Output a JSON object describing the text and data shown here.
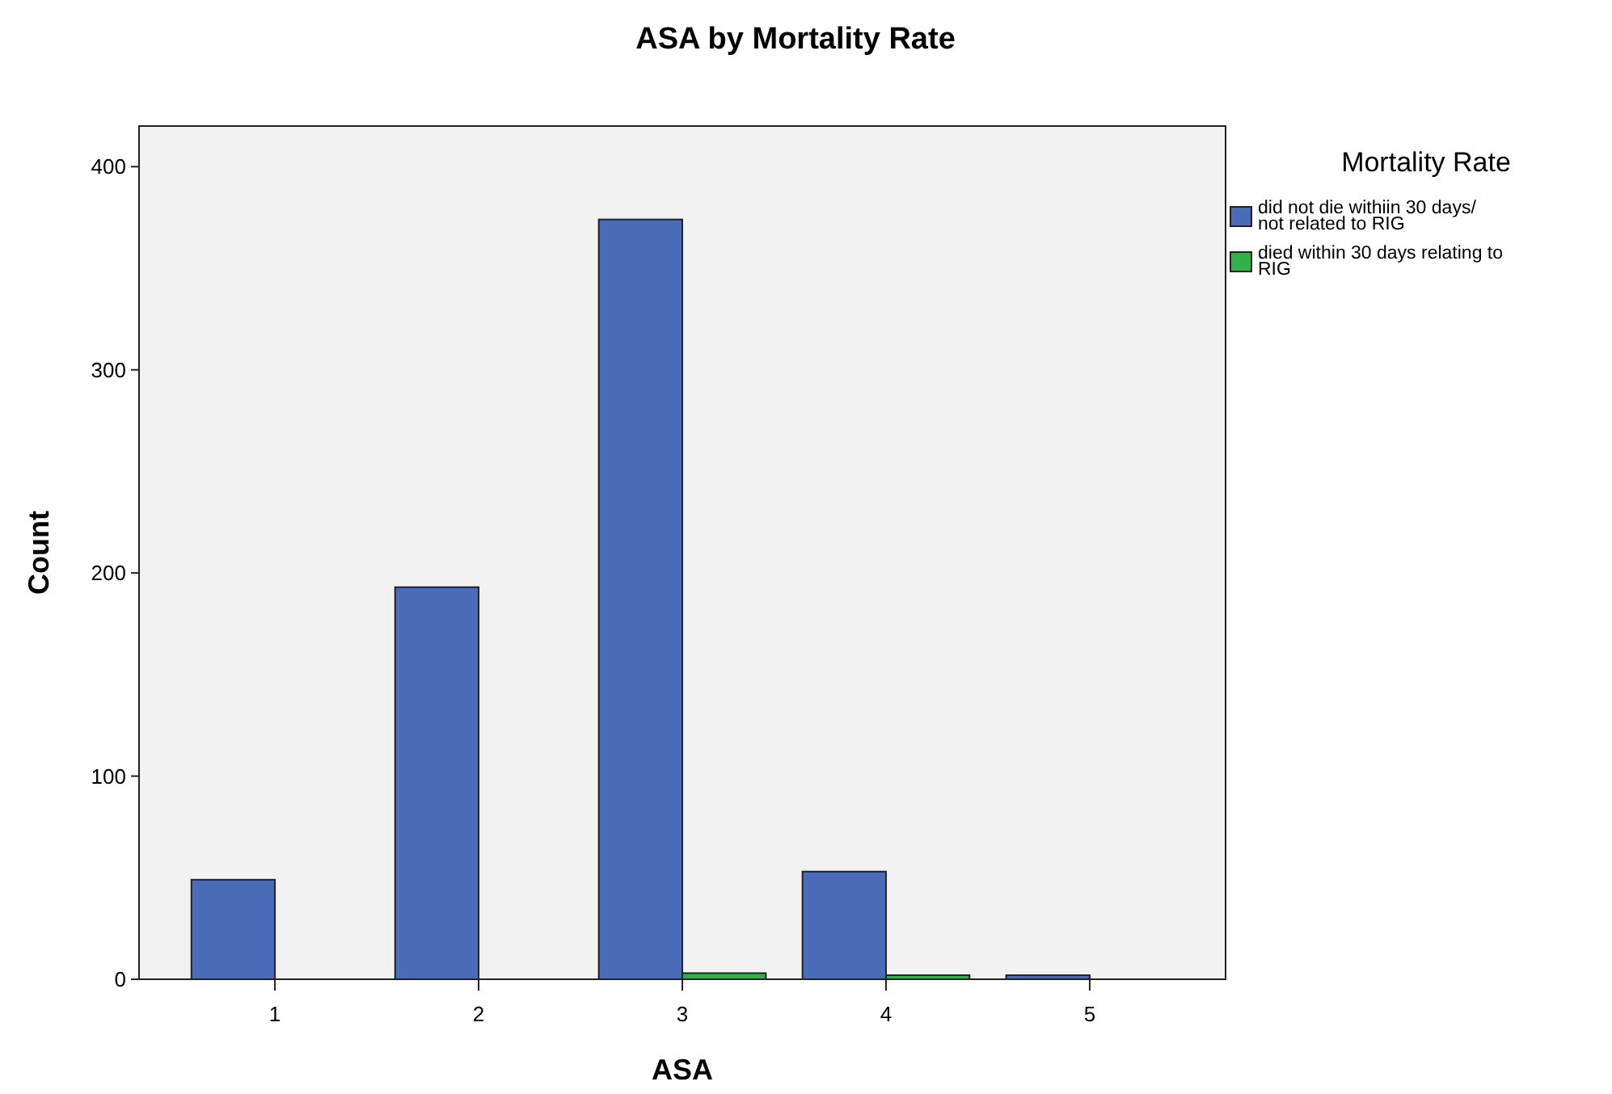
{
  "chart_data": {
    "type": "bar",
    "title": "ASA by Mortality Rate",
    "xlabel": "ASA",
    "ylabel": "Count",
    "legend_title": "Mortality Rate",
    "categories": [
      "1",
      "2",
      "3",
      "4",
      "5"
    ],
    "series": [
      {
        "name": "did not die withiin 30 days/ not related to RIG",
        "color": "#4a6bb7",
        "values": [
          49,
          193,
          374,
          53,
          2
        ]
      },
      {
        "name": "died within 30 days relating to RIG",
        "color": "#2fb24a",
        "values": [
          0,
          0,
          3,
          2,
          0
        ]
      }
    ],
    "ylim": [
      0,
      420
    ],
    "yticks": [
      0,
      100,
      200,
      300,
      400
    ],
    "grid": false,
    "legend": "top right"
  }
}
